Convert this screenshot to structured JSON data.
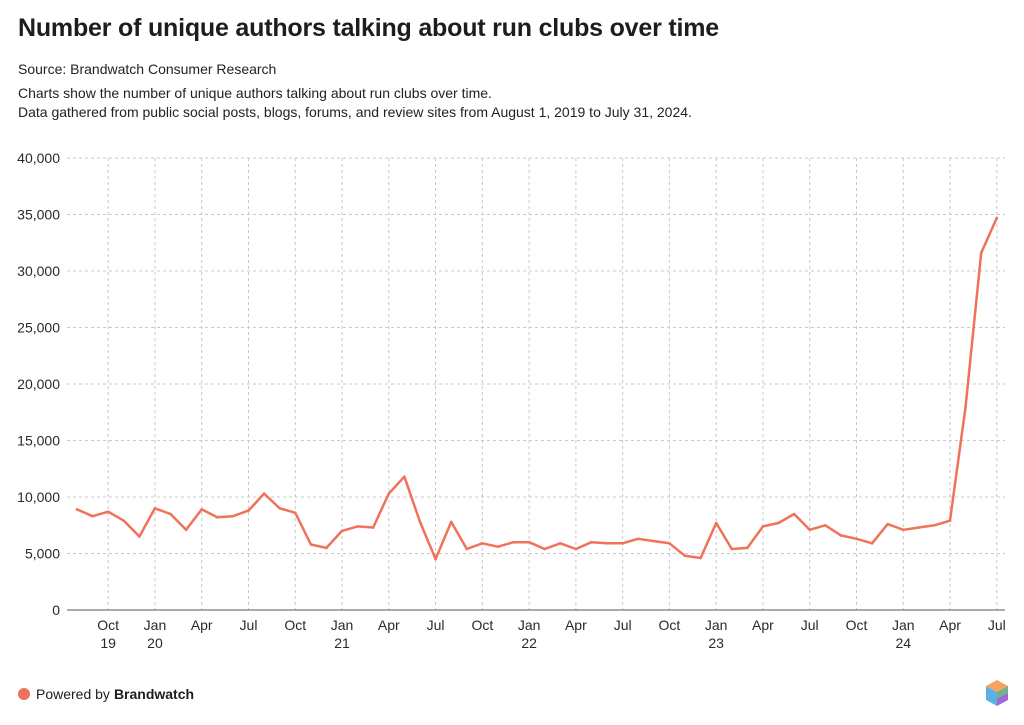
{
  "header": {
    "title": "Number of unique authors talking about run clubs over time",
    "source": "Source: Brandwatch Consumer Research",
    "description_line1": "Charts show the number of unique authors talking about run clubs over time.",
    "description_line2": "Data gathered from public social posts, blogs, forums, and review sites from August 1, 2019 to July 31, 2024."
  },
  "footer": {
    "powered_prefix": "Powered by",
    "brand": "Brandwatch",
    "logo_icon": "brandwatch-hexagon-logo-icon"
  },
  "colors": {
    "line": "#f0725a",
    "grid": "#c9c9c9",
    "axis": "#555555",
    "footer_dot": "#f0725a"
  },
  "chart_data": {
    "type": "line",
    "title": "Number of unique authors talking about run clubs over time",
    "xlabel": "",
    "ylabel": "",
    "ylim": [
      0,
      40000
    ],
    "yticks": [
      0,
      5000,
      10000,
      15000,
      20000,
      25000,
      30000,
      35000,
      40000
    ],
    "ytick_labels": [
      "0",
      "5,000",
      "10,000",
      "15,000",
      "20,000",
      "25,000",
      "30,000",
      "35,000",
      "40,000"
    ],
    "grid": true,
    "x_start": "2019-08",
    "x_ticks": [
      {
        "index": 2,
        "month": "Oct",
        "year": "19"
      },
      {
        "index": 5,
        "month": "Jan",
        "year": "20"
      },
      {
        "index": 8,
        "month": "Apr",
        "year": ""
      },
      {
        "index": 11,
        "month": "Jul",
        "year": ""
      },
      {
        "index": 14,
        "month": "Oct",
        "year": ""
      },
      {
        "index": 17,
        "month": "Jan",
        "year": "21"
      },
      {
        "index": 20,
        "month": "Apr",
        "year": ""
      },
      {
        "index": 23,
        "month": "Jul",
        "year": ""
      },
      {
        "index": 26,
        "month": "Oct",
        "year": ""
      },
      {
        "index": 29,
        "month": "Jan",
        "year": "22"
      },
      {
        "index": 32,
        "month": "Apr",
        "year": ""
      },
      {
        "index": 35,
        "month": "Jul",
        "year": ""
      },
      {
        "index": 38,
        "month": "Oct",
        "year": ""
      },
      {
        "index": 41,
        "month": "Jan",
        "year": "23"
      },
      {
        "index": 44,
        "month": "Apr",
        "year": ""
      },
      {
        "index": 47,
        "month": "Jul",
        "year": ""
      },
      {
        "index": 50,
        "month": "Oct",
        "year": ""
      },
      {
        "index": 53,
        "month": "Jan",
        "year": "24"
      },
      {
        "index": 56,
        "month": "Apr",
        "year": ""
      },
      {
        "index": 59,
        "month": "Jul",
        "year": ""
      }
    ],
    "series": [
      {
        "name": "Unique authors",
        "values": [
          8900,
          8300,
          8700,
          7900,
          6500,
          9000,
          8500,
          7100,
          8900,
          8200,
          8300,
          8800,
          10300,
          9000,
          8600,
          5800,
          5500,
          7000,
          7400,
          7300,
          10300,
          11800,
          7800,
          4500,
          7800,
          5400,
          5900,
          5600,
          6000,
          6000,
          5400,
          5900,
          5400,
          6000,
          5900,
          5900,
          6300,
          6100,
          5900,
          4800,
          4600,
          7700,
          5400,
          5500,
          7400,
          7700,
          8500,
          7100,
          7500,
          6600,
          6300,
          5900,
          7600,
          7100,
          7300,
          7500,
          7900,
          18000,
          31600,
          34700
        ]
      }
    ]
  }
}
